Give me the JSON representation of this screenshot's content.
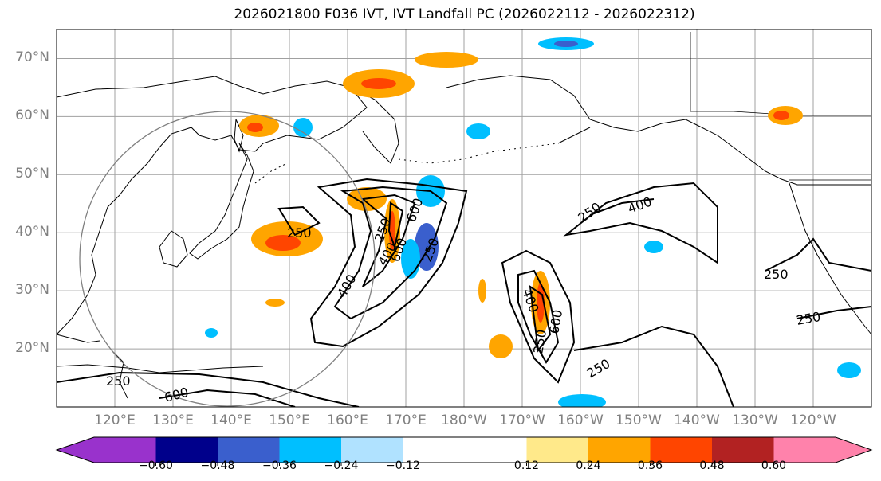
{
  "title": "2026021800 F036 IVT, IVT Landfall PC (2026022112 - 2026022312)",
  "map": {
    "lat_labels": [
      "70°N",
      "60°N",
      "50°N",
      "40°N",
      "30°N",
      "20°N"
    ],
    "lat_values": [
      70,
      60,
      50,
      40,
      30,
      20
    ],
    "lon_labels": [
      "120°E",
      "130°E",
      "140°E",
      "150°E",
      "160°E",
      "170°E",
      "180°W",
      "170°W",
      "160°W",
      "150°W",
      "140°W",
      "130°W",
      "120°W"
    ],
    "lon_values": [
      120,
      130,
      140,
      150,
      160,
      170,
      180,
      190,
      200,
      210,
      220,
      230,
      240
    ],
    "lon_range": [
      110,
      250
    ],
    "lat_range": [
      10,
      75
    ],
    "ivt_contour_labels": [
      "250",
      "250",
      "400",
      "250",
      "400",
      "600",
      "400",
      "600",
      "250",
      "600",
      "250",
      "400",
      "250",
      "250",
      "250",
      "600",
      "250"
    ],
    "grid": true
  },
  "colorbar": {
    "tick_labels": [
      "−0.60",
      "−0.48",
      "−0.36",
      "−0.24",
      "−0.12",
      "0.12",
      "0.24",
      "0.36",
      "0.48",
      "0.60"
    ],
    "tick_values": [
      -0.6,
      -0.48,
      -0.36,
      -0.24,
      -0.12,
      0.12,
      0.24,
      0.36,
      0.48,
      0.6
    ],
    "colors": [
      "#9932cc",
      "#00008b",
      "#3a5fcd",
      "#00bfff",
      "#b0e2ff",
      "#ffffff",
      "#ffe98a",
      "#ffa500",
      "#ff4500",
      "#b22222",
      "#ff82ab",
      "#ff82ab"
    ],
    "extend": "both"
  }
}
